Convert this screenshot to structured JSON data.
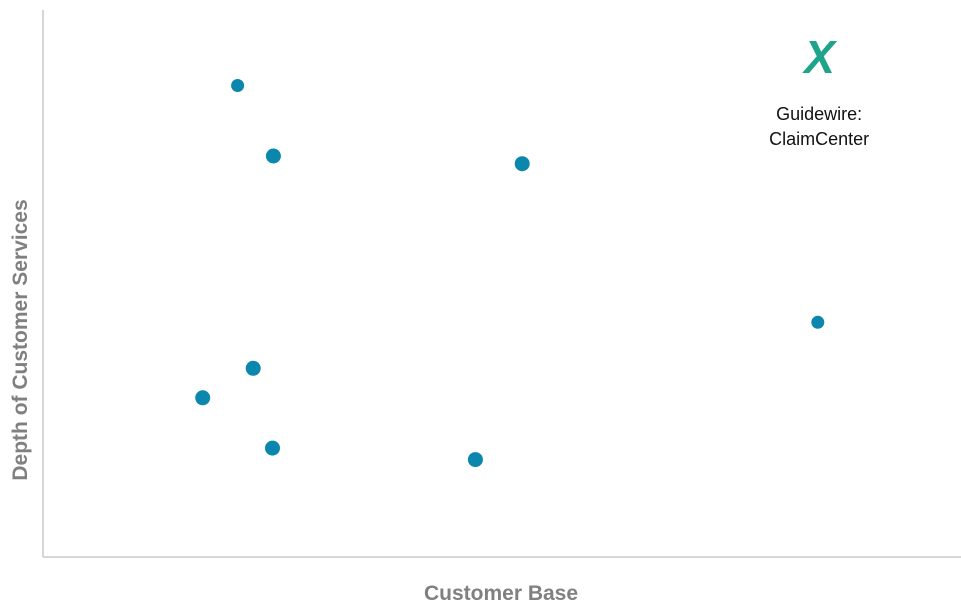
{
  "chart_data": {
    "type": "scatter",
    "title": "",
    "xlabel": "Customer Base",
    "ylabel": "Depth of Customer Services",
    "xlim": [
      0,
      100
    ],
    "ylim": [
      0,
      100
    ],
    "grid": false,
    "tick_labels": false,
    "colors": {
      "points": "#0b86ac",
      "highlight": "#1fa38a",
      "axis": "#c8c8c8",
      "label": "#808080"
    },
    "points": [
      {
        "x": 21.2,
        "y": 86.2,
        "size": "small"
      },
      {
        "x": 25.1,
        "y": 73.3,
        "size": "medium"
      },
      {
        "x": 52.2,
        "y": 71.9,
        "size": "medium"
      },
      {
        "x": 84.4,
        "y": 42.9,
        "size": "small"
      },
      {
        "x": 22.9,
        "y": 34.5,
        "size": "medium"
      },
      {
        "x": 17.4,
        "y": 29.1,
        "size": "medium"
      },
      {
        "x": 25.0,
        "y": 19.9,
        "size": "medium"
      },
      {
        "x": 47.1,
        "y": 17.8,
        "size": "medium"
      }
    ],
    "highlight": {
      "x": 84.6,
      "y": 91.4,
      "marker": "X",
      "label_lines": [
        "Guidewire:",
        "ClaimCenter"
      ]
    }
  }
}
